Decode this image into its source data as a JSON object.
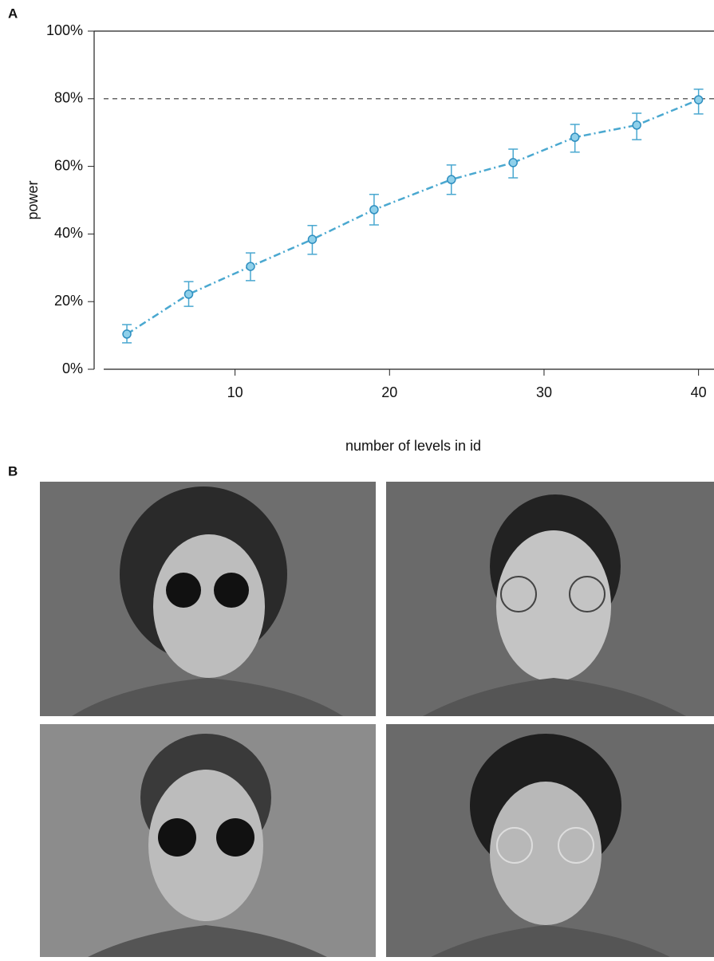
{
  "chart_data": {
    "type": "line",
    "panel_label": "A",
    "panel_b_label": "B",
    "x_label": "number of levels in id",
    "y_label": "power",
    "x": [
      3,
      7,
      11,
      15,
      19,
      24,
      28,
      32,
      36,
      40
    ],
    "series": [
      {
        "color": "#4aa8d0",
        "values": [
          10.4,
          22.2,
          30.4,
          38.4,
          47.2,
          56.1,
          61.1,
          68.6,
          72.2,
          79.7
        ],
        "lower": [
          7.8,
          18.6,
          26.2,
          34.0,
          42.7,
          51.7,
          56.6,
          64.2,
          67.9,
          75.5
        ],
        "upper": [
          13.2,
          25.9,
          34.4,
          42.5,
          51.7,
          60.4,
          65.1,
          72.4,
          75.7,
          82.8
        ]
      }
    ],
    "reference_line": 80,
    "xlim": [
      1.5,
      41
    ],
    "xticks": [
      10,
      20,
      30,
      40
    ],
    "ylim": [
      0,
      100
    ],
    "yticks": [
      {
        "value": 0,
        "label": "0%"
      },
      {
        "value": 20,
        "label": "20%"
      },
      {
        "value": 40,
        "label": "40%"
      },
      {
        "value": 60,
        "label": "60%"
      },
      {
        "value": 80,
        "label": "80%"
      },
      {
        "value": 100,
        "label": "100%"
      }
    ]
  }
}
